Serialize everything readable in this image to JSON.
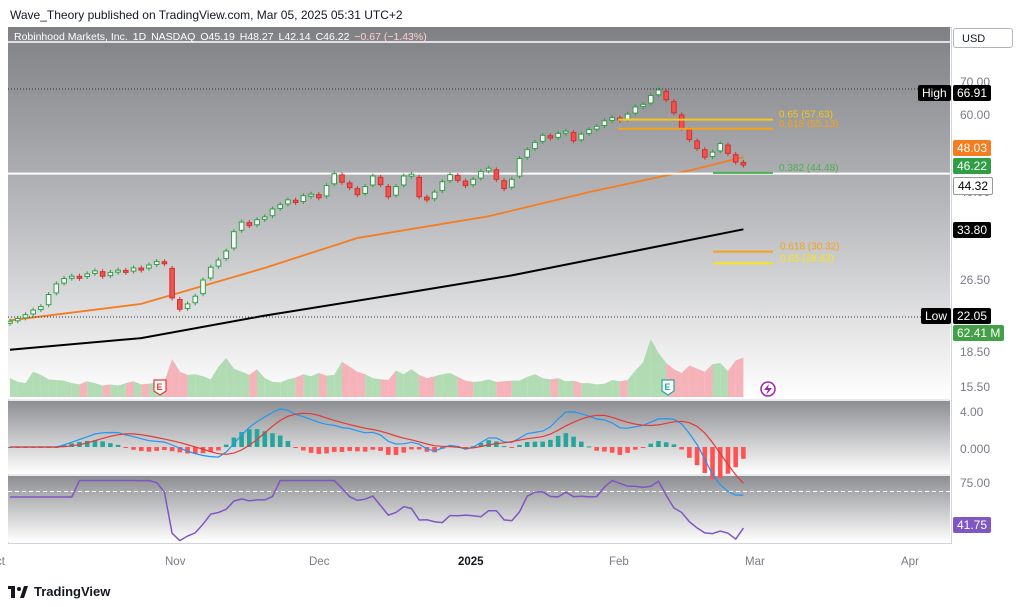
{
  "header": {
    "publisher": "Wave_Theory published on TradingView.com, Mar 05, 2025 05:31 UTC+2"
  },
  "symbol": {
    "name": "Robinhood Markets, Inc.",
    "interval": "1D",
    "exchange": "NASDAQ",
    "open": "O45.19",
    "high": "H48.27",
    "low": "L42.14",
    "close": "C46.22",
    "change": "−0.67 (−1.43%)"
  },
  "currency_button": "USD",
  "chart_data": {
    "type": "candlestick",
    "title": "Robinhood Markets, Inc. · 1D · NASDAQ",
    "x_axis_labels": [
      {
        "label": "Oct",
        "day": 0
      },
      {
        "label": "Nov",
        "day": 22
      },
      {
        "label": "Dec",
        "day": 43
      },
      {
        "label": "2025",
        "day": 63
      },
      {
        "label": "Feb",
        "day": 84
      },
      {
        "label": "Mar",
        "day": 103
      },
      {
        "label": "Apr",
        "day": 125
      }
    ],
    "price_axis": {
      "scale": "log",
      "ticks": [
        "70.00",
        "60.00",
        "40.00",
        "26.50",
        "18.50",
        "15.50"
      ],
      "tick_values": [
        70,
        60,
        40,
        26.5,
        18.5,
        15.5
      ]
    },
    "closes": [
      21.6,
      21.9,
      22.3,
      22.8,
      23.2,
      24.6,
      25.9,
      26.6,
      26.9,
      26.8,
      27.2,
      27.6,
      26.9,
      27.4,
      27.7,
      27.5,
      28.0,
      27.9,
      28.4,
      28.9,
      28.6,
      24.2,
      22.9,
      23.5,
      24.4,
      26.4,
      28.1,
      29.1,
      30.4,
      33.4,
      35.0,
      34.4,
      35.4,
      35.9,
      37.3,
      38.1,
      39.0,
      38.5,
      39.8,
      40.1,
      39.4,
      41.8,
      44.3,
      42.5,
      41.4,
      40.0,
      41.6,
      43.8,
      42.0,
      39.6,
      41.6,
      43.8,
      44.2,
      39.6,
      39.0,
      40.5,
      42.6,
      44.1,
      42.9,
      41.8,
      43.1,
      44.8,
      45.5,
      43.1,
      41.2,
      43.1,
      47.7,
      49.8,
      51.6,
      53.4,
      52.7,
      53.9,
      54.5,
      52.0,
      53.7,
      54.9,
      55.8,
      57.3,
      58.2,
      57.5,
      59.2,
      61.3,
      62.1,
      64.8,
      66.6,
      63.5,
      59.6,
      55.3,
      52.3,
      50.1,
      48.0,
      49.2,
      51.3,
      48.9,
      46.9,
      46.22
    ],
    "candles_shown": 96,
    "sma50": [
      {
        "day": 0,
        "value": 21.7
      },
      {
        "day": 17,
        "value": 23.5
      },
      {
        "day": 33,
        "value": 28.0
      },
      {
        "day": 45,
        "value": 32.4
      },
      {
        "day": 62,
        "value": 36.0
      },
      {
        "day": 75,
        "value": 40.5
      },
      {
        "day": 88,
        "value": 45.0
      },
      {
        "day": 95,
        "value": 48.03
      }
    ],
    "sma200": [
      {
        "day": 0,
        "value": 18.8
      },
      {
        "day": 17,
        "value": 19.9
      },
      {
        "day": 33,
        "value": 22.2
      },
      {
        "day": 50,
        "value": 24.6
      },
      {
        "day": 65,
        "value": 27.0
      },
      {
        "day": 80,
        "value": 30.2
      },
      {
        "day": 95,
        "value": 33.8
      }
    ],
    "fib_levels": [
      {
        "label": "0.65 (57.63)",
        "value": 57.63,
        "color": "#f7c51e"
      },
      {
        "label": "0.618 (55.13)",
        "value": 55.13,
        "color": "#f7a21b"
      },
      {
        "label": "0.382 (44.48)",
        "value": 44.48,
        "color": "#4caf50"
      },
      {
        "label": "0.618 (30.32)",
        "value": 30.32,
        "color": "#f7a21b"
      },
      {
        "label": "0.65 (28.63)",
        "value": 28.63,
        "color": "#f7e51e"
      }
    ],
    "price_badges": [
      {
        "label": "High",
        "value": "66.91",
        "color": "#000000"
      },
      {
        "label": "",
        "value": "48.03",
        "color": "#f57c1f"
      },
      {
        "label": "",
        "value": "46.22",
        "color": "#2f9e44"
      },
      {
        "label": "",
        "value": "44.32",
        "color": "#ffffff"
      },
      {
        "label": "",
        "value": "33.80",
        "color": "#000000"
      },
      {
        "label": "Low",
        "value": "22.05",
        "color": "#000000"
      },
      {
        "label": "",
        "value": "62.41 M",
        "color": "#43a047"
      }
    ],
    "high_line": 66.91,
    "low_line": 22.05,
    "support_line": 44.32,
    "volume": [
      30,
      24,
      22,
      40,
      35,
      28,
      27,
      26,
      22,
      20,
      25,
      22,
      18,
      20,
      18,
      22,
      25,
      20,
      21,
      23,
      24,
      60,
      40,
      35,
      36,
      33,
      28,
      48,
      62,
      45,
      40,
      35,
      44,
      30,
      24,
      23,
      28,
      31,
      36,
      33,
      38,
      34,
      35,
      56,
      48,
      40,
      36,
      30,
      28,
      27,
      42,
      36,
      44,
      35,
      30,
      33,
      36,
      38,
      32,
      26,
      24,
      25,
      28,
      24,
      25,
      26,
      26,
      32,
      36,
      30,
      28,
      30,
      25,
      26,
      22,
      22,
      20,
      21,
      27,
      25,
      27,
      42,
      55,
      92,
      70,
      54,
      44,
      38,
      50,
      45,
      40,
      52,
      54,
      41,
      58,
      62.41
    ],
    "volume_unit": "M",
    "macd": {
      "axis_ticks": [
        "4.00",
        "0.000"
      ],
      "tick_values": [
        4.0,
        0.0
      ]
    },
    "rsi": {
      "axis_ticks": [
        "75.00"
      ],
      "tick_values": [
        75
      ],
      "value": "41.75",
      "color": "#7e57c2"
    },
    "earnings_markers": [
      "E",
      "E"
    ]
  },
  "footer": {
    "brand": "TradingView"
  }
}
